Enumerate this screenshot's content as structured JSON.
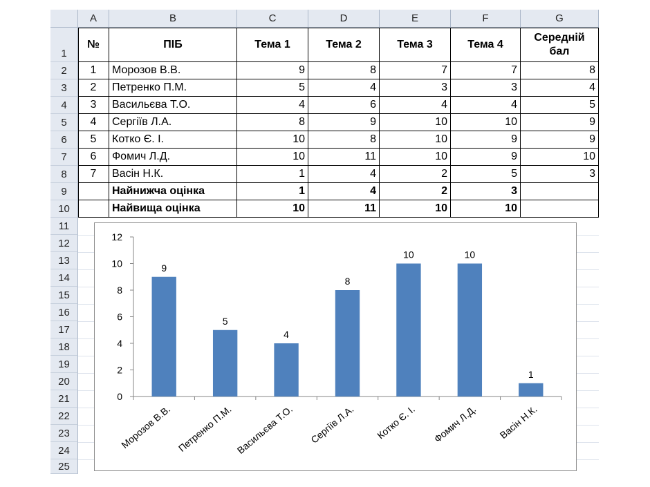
{
  "sheet": {
    "columns": [
      "A",
      "B",
      "C",
      "D",
      "E",
      "F",
      "G"
    ],
    "rows": [
      "1",
      "2",
      "3",
      "4",
      "5",
      "6",
      "7",
      "8",
      "9",
      "10",
      "11",
      "12",
      "13",
      "14",
      "15",
      "16",
      "17",
      "18",
      "19",
      "20",
      "21",
      "22",
      "23",
      "24",
      "25"
    ],
    "header": {
      "num": "№",
      "name": "ПІБ",
      "t1": "Тема 1",
      "t2": "Тема 2",
      "t3": "Тема 3",
      "t4": "Тема 4",
      "avg1": "Середній",
      "avg2": "бал"
    },
    "students": [
      {
        "num": "1",
        "name": "Морозов В.В.",
        "t1": "9",
        "t2": "8",
        "t3": "7",
        "t4": "7",
        "avg": "8"
      },
      {
        "num": "2",
        "name": "Петренко П.М.",
        "t1": "5",
        "t2": "4",
        "t3": "3",
        "t4": "3",
        "avg": "4"
      },
      {
        "num": "3",
        "name": "Васильєва Т.О.",
        "t1": "4",
        "t2": "6",
        "t3": "4",
        "t4": "4",
        "avg": "5"
      },
      {
        "num": "4",
        "name": "Сергіїв Л.А.",
        "t1": "8",
        "t2": "9",
        "t3": "10",
        "t4": "10",
        "avg": "9"
      },
      {
        "num": "5",
        "name": "Котко Є. І.",
        "t1": "10",
        "t2": "8",
        "t3": "10",
        "t4": "9",
        "avg": "9"
      },
      {
        "num": "6",
        "name": "Фомич Л.Д.",
        "t1": "10",
        "t2": "11",
        "t3": "10",
        "t4": "9",
        "avg": "10"
      },
      {
        "num": "7",
        "name": "Васін Н.К.",
        "t1": "1",
        "t2": "4",
        "t3": "2",
        "t4": "5",
        "avg": "3"
      }
    ],
    "min_row": {
      "label": "Найнижча оцінка",
      "t1": "1",
      "t2": "4",
      "t3": "2",
      "t4": "3"
    },
    "max_row": {
      "label": "Найвища оцінка",
      "t1": "10",
      "t2": "11",
      "t3": "10",
      "t4": "10"
    }
  },
  "chart_data": {
    "type": "bar",
    "categories": [
      "Морозов В.В.",
      "Петренко П.М.",
      "Васильєва Т.О.",
      "Сергіїв Л.А.",
      "Котко Є. І.",
      "Фомич Л.Д.",
      "Васін Н.К."
    ],
    "values": [
      9,
      5,
      4,
      8,
      10,
      10,
      1
    ],
    "data_labels": [
      "9",
      "5",
      "4",
      "8",
      "10",
      "10",
      "1"
    ],
    "ylim": [
      0,
      12
    ],
    "yticks": [
      "0",
      "2",
      "4",
      "6",
      "8",
      "10",
      "12"
    ],
    "grid": false,
    "legend": "none",
    "bar_color": "#4f81bd"
  }
}
